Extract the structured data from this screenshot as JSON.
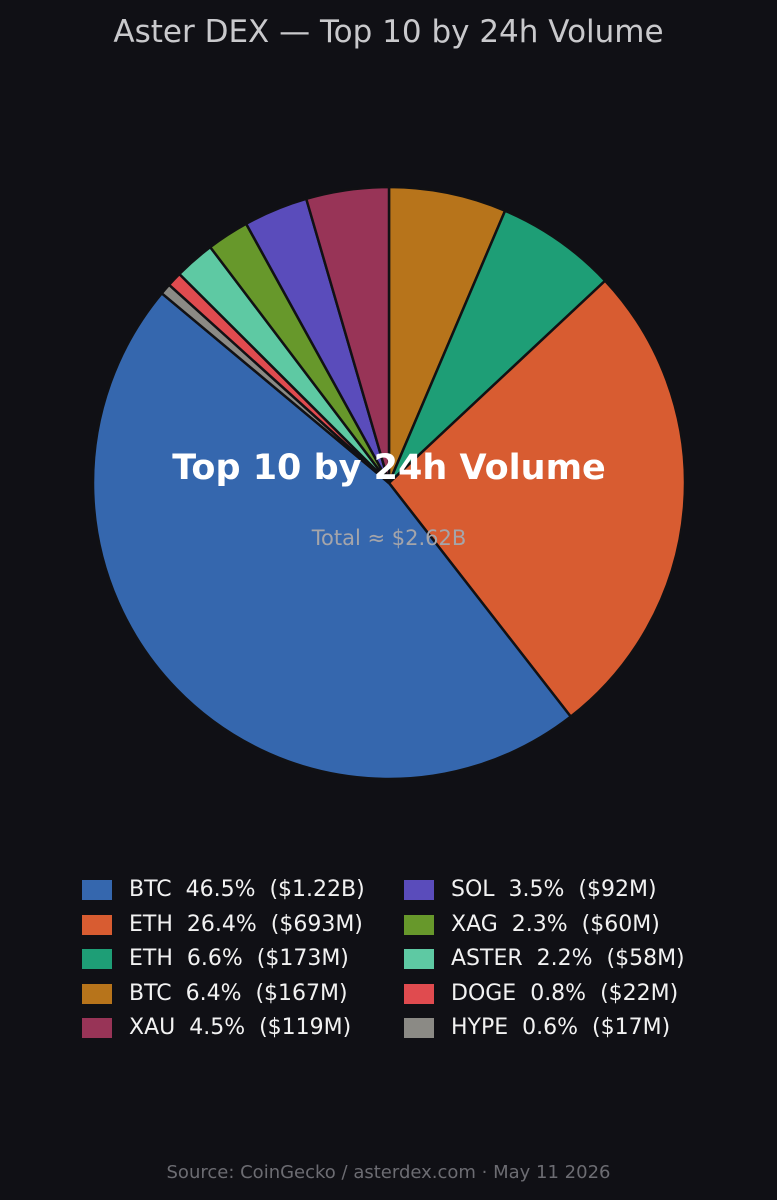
{
  "chart_data": {
    "type": "pie",
    "title": "Aster DEX — Top 10 by 24h Volume",
    "center_title": "Top 10 by 24h Volume",
    "center_subtitle": "Total ≈ $2.62B",
    "source": "Source: CoinGecko / asterdex.com  ·  May 11 2026",
    "legend_placement": "bottom",
    "slices": [
      {
        "label": "BTC  46.5%  ($1.22B)",
        "name": "BTC",
        "percent": 46.5,
        "value_usd_m": 1220,
        "color": "#3567ae"
      },
      {
        "label": "ETH  26.4%  ($693M)",
        "name": "ETH",
        "percent": 26.4,
        "value_usd_m": 693,
        "color": "#d85c31"
      },
      {
        "label": "ETH  6.6%  ($173M)",
        "name": "ETH",
        "percent": 6.6,
        "value_usd_m": 173,
        "color": "#1e9e76"
      },
      {
        "label": "BTC  6.4%  ($167M)",
        "name": "BTC",
        "percent": 6.4,
        "value_usd_m": 167,
        "color": "#b7741b"
      },
      {
        "label": "XAU  4.5%  ($119M)",
        "name": "XAU",
        "percent": 4.5,
        "value_usd_m": 119,
        "color": "#983457"
      },
      {
        "label": "SOL  3.5%  ($92M)",
        "name": "SOL",
        "percent": 3.5,
        "value_usd_m": 92,
        "color": "#5a4cbb"
      },
      {
        "label": "XAG  2.3%  ($60M)",
        "name": "XAG",
        "percent": 2.3,
        "value_usd_m": 60,
        "color": "#67982b"
      },
      {
        "label": "ASTER  2.2%  ($58M)",
        "name": "ASTER",
        "percent": 2.2,
        "value_usd_m": 58,
        "color": "#5ec9a3"
      },
      {
        "label": "DOGE  0.8%  ($22M)",
        "name": "DOGE",
        "percent": 0.8,
        "value_usd_m": 22,
        "color": "#e04b4f"
      },
      {
        "label": "HYPE  0.6%  ($17M)",
        "name": "HYPE",
        "percent": 0.6,
        "value_usd_m": 17,
        "color": "#8b8a85"
      }
    ]
  }
}
